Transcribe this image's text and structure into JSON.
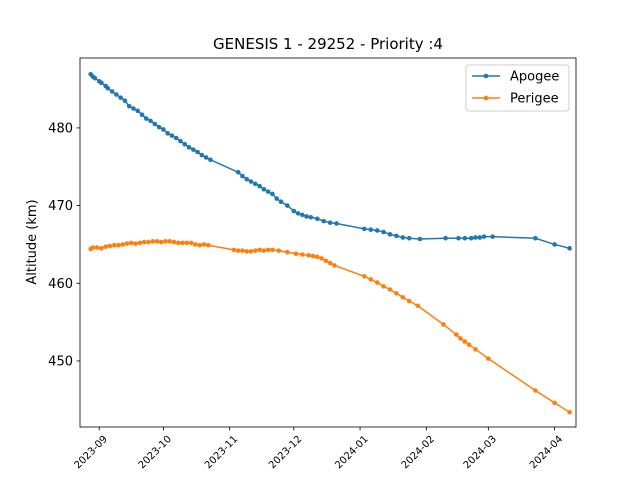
{
  "chart_data": {
    "type": "line",
    "title": "GENESIS 1 - 29252 - Priority :4",
    "xlabel": "",
    "ylabel": "Altitude (km)",
    "xlim": [
      "2023-08-23",
      "2024-04-11"
    ],
    "ylim": [
      441.5,
      489.0
    ],
    "x_ticks": [
      "2023-09",
      "2023-10",
      "2023-11",
      "2023-12",
      "2024-01",
      "2024-02",
      "2024-03",
      "2024-04"
    ],
    "y_ticks": [
      450,
      460,
      470,
      480
    ],
    "legend_position": "top-right",
    "series": [
      {
        "name": "Apogee",
        "color": "#1f77b4",
        "marker": "circle",
        "points": [
          [
            "2023-08-28",
            486.9
          ],
          [
            "2023-08-29",
            486.6
          ],
          [
            "2023-08-30",
            486.4
          ],
          [
            "2023-09-01",
            486.0
          ],
          [
            "2023-09-02",
            485.8
          ],
          [
            "2023-09-04",
            485.4
          ],
          [
            "2023-09-05",
            485.1
          ],
          [
            "2023-09-07",
            484.7
          ],
          [
            "2023-09-09",
            484.3
          ],
          [
            "2023-09-11",
            483.9
          ],
          [
            "2023-09-13",
            483.5
          ],
          [
            "2023-09-15",
            482.8
          ],
          [
            "2023-09-17",
            482.5
          ],
          [
            "2023-09-19",
            482.2
          ],
          [
            "2023-09-21",
            481.7
          ],
          [
            "2023-09-23",
            481.2
          ],
          [
            "2023-09-25",
            480.9
          ],
          [
            "2023-09-27",
            480.5
          ],
          [
            "2023-09-29",
            480.1
          ],
          [
            "2023-10-01",
            479.8
          ],
          [
            "2023-10-03",
            479.3
          ],
          [
            "2023-10-05",
            479.0
          ],
          [
            "2023-10-07",
            478.7
          ],
          [
            "2023-10-09",
            478.3
          ],
          [
            "2023-10-11",
            477.9
          ],
          [
            "2023-10-13",
            477.5
          ],
          [
            "2023-10-15",
            477.2
          ],
          [
            "2023-10-17",
            476.9
          ],
          [
            "2023-10-19",
            476.5
          ],
          [
            "2023-10-21",
            476.2
          ],
          [
            "2023-10-23",
            475.9
          ],
          [
            "2023-11-05",
            474.3
          ],
          [
            "2023-11-07",
            473.8
          ],
          [
            "2023-11-09",
            473.4
          ],
          [
            "2023-11-11",
            473.1
          ],
          [
            "2023-11-13",
            472.8
          ],
          [
            "2023-11-15",
            472.5
          ],
          [
            "2023-11-17",
            472.1
          ],
          [
            "2023-11-19",
            471.8
          ],
          [
            "2023-11-21",
            471.5
          ],
          [
            "2023-11-23",
            470.9
          ],
          [
            "2023-11-25",
            470.5
          ],
          [
            "2023-11-28",
            470.0
          ],
          [
            "2023-12-01",
            469.3
          ],
          [
            "2023-12-03",
            469.0
          ],
          [
            "2023-12-05",
            468.8
          ],
          [
            "2023-12-07",
            468.6
          ],
          [
            "2023-12-09",
            468.5
          ],
          [
            "2023-12-12",
            468.3
          ],
          [
            "2023-12-15",
            468.0
          ],
          [
            "2023-12-18",
            467.8
          ],
          [
            "2023-12-21",
            467.7
          ],
          [
            "2024-01-03",
            467.0
          ],
          [
            "2024-01-06",
            466.9
          ],
          [
            "2024-01-09",
            466.8
          ],
          [
            "2024-01-12",
            466.6
          ],
          [
            "2024-01-15",
            466.3
          ],
          [
            "2024-01-18",
            466.1
          ],
          [
            "2024-01-21",
            465.9
          ],
          [
            "2024-01-24",
            465.8
          ],
          [
            "2024-01-29",
            465.7
          ],
          [
            "2024-02-10",
            465.8
          ],
          [
            "2024-02-16",
            465.8
          ],
          [
            "2024-02-19",
            465.8
          ],
          [
            "2024-02-22",
            465.8
          ],
          [
            "2024-02-24",
            465.9
          ],
          [
            "2024-02-26",
            465.9
          ],
          [
            "2024-02-28",
            466.0
          ],
          [
            "2024-03-03",
            466.0
          ],
          [
            "2024-03-23",
            465.8
          ],
          [
            "2024-04-01",
            465.0
          ],
          [
            "2024-04-08",
            464.5
          ]
        ]
      },
      {
        "name": "Perigee",
        "color": "#ff7f0e",
        "marker": "circle",
        "points": [
          [
            "2023-08-28",
            464.4
          ],
          [
            "2023-08-29",
            464.6
          ],
          [
            "2023-08-31",
            464.6
          ],
          [
            "2023-09-02",
            464.5
          ],
          [
            "2023-09-04",
            464.7
          ],
          [
            "2023-09-06",
            464.8
          ],
          [
            "2023-09-08",
            464.9
          ],
          [
            "2023-09-10",
            464.9
          ],
          [
            "2023-09-12",
            465.0
          ],
          [
            "2023-09-14",
            465.1
          ],
          [
            "2023-09-16",
            465.2
          ],
          [
            "2023-09-18",
            465.1
          ],
          [
            "2023-09-20",
            465.2
          ],
          [
            "2023-09-22",
            465.3
          ],
          [
            "2023-09-24",
            465.3
          ],
          [
            "2023-09-26",
            465.4
          ],
          [
            "2023-09-28",
            465.4
          ],
          [
            "2023-09-30",
            465.3
          ],
          [
            "2023-10-02",
            465.4
          ],
          [
            "2023-10-04",
            465.4
          ],
          [
            "2023-10-06",
            465.3
          ],
          [
            "2023-10-08",
            465.2
          ],
          [
            "2023-10-10",
            465.2
          ],
          [
            "2023-10-12",
            465.2
          ],
          [
            "2023-10-14",
            465.2
          ],
          [
            "2023-10-16",
            465.0
          ],
          [
            "2023-10-18",
            464.9
          ],
          [
            "2023-10-20",
            465.0
          ],
          [
            "2023-10-22",
            464.9
          ],
          [
            "2023-11-03",
            464.3
          ],
          [
            "2023-11-05",
            464.2
          ],
          [
            "2023-11-07",
            464.2
          ],
          [
            "2023-11-09",
            464.1
          ],
          [
            "2023-11-11",
            464.1
          ],
          [
            "2023-11-13",
            464.2
          ],
          [
            "2023-11-15",
            464.3
          ],
          [
            "2023-11-17",
            464.2
          ],
          [
            "2023-11-19",
            464.3
          ],
          [
            "2023-11-21",
            464.3
          ],
          [
            "2023-11-24",
            464.2
          ],
          [
            "2023-11-28",
            464.0
          ],
          [
            "2023-12-02",
            463.8
          ],
          [
            "2023-12-05",
            463.7
          ],
          [
            "2023-12-08",
            463.6
          ],
          [
            "2023-12-10",
            463.5
          ],
          [
            "2023-12-12",
            463.4
          ],
          [
            "2023-12-14",
            463.2
          ],
          [
            "2023-12-16",
            462.9
          ],
          [
            "2023-12-18",
            462.6
          ],
          [
            "2023-12-20",
            462.3
          ],
          [
            "2024-01-03",
            460.9
          ],
          [
            "2024-01-06",
            460.5
          ],
          [
            "2024-01-09",
            460.1
          ],
          [
            "2024-01-12",
            459.6
          ],
          [
            "2024-01-15",
            459.2
          ],
          [
            "2024-01-18",
            458.7
          ],
          [
            "2024-01-21",
            458.2
          ],
          [
            "2024-01-24",
            457.7
          ],
          [
            "2024-01-28",
            457.1
          ],
          [
            "2024-02-09",
            454.7
          ],
          [
            "2024-02-15",
            453.4
          ],
          [
            "2024-02-17",
            452.9
          ],
          [
            "2024-02-19",
            452.5
          ],
          [
            "2024-02-21",
            452.1
          ],
          [
            "2024-02-24",
            451.5
          ],
          [
            "2024-03-01",
            450.3
          ],
          [
            "2024-03-23",
            446.2
          ],
          [
            "2024-04-01",
            444.6
          ],
          [
            "2024-04-08",
            443.4
          ]
        ]
      }
    ]
  }
}
